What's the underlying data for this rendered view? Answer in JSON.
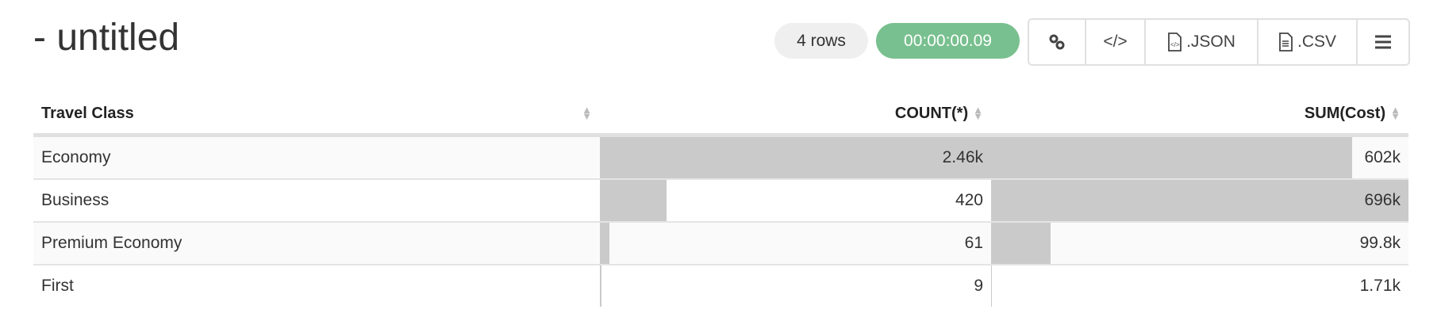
{
  "title": "- untitled",
  "row_count": "4 rows",
  "elapsed": "00:00:00.09",
  "colors": {
    "elapsed_bg": "#78c08f",
    "bar": "#cacaca"
  },
  "toolbar": {
    "link_icon": "link-icon",
    "embed_icon": "code-icon",
    "json_label": ".JSON",
    "csv_label": ".CSV",
    "menu_icon": "hamburger-icon"
  },
  "table": {
    "headers": [
      "Travel Class",
      "COUNT(*)",
      "SUM(Cost)"
    ],
    "rows": [
      {
        "class": "Economy",
        "count": "2.46k",
        "sum": "602k",
        "count_frac": 1.0,
        "sum_frac": 0.865
      },
      {
        "class": "Business",
        "count": "420",
        "sum": "696k",
        "count_frac": 0.171,
        "sum_frac": 1.0
      },
      {
        "class": "Premium Economy",
        "count": "61",
        "sum": "99.8k",
        "count_frac": 0.025,
        "sum_frac": 0.143
      },
      {
        "class": "First",
        "count": "9",
        "sum": "1.71k",
        "count_frac": 0.004,
        "sum_frac": 0.002
      }
    ]
  }
}
